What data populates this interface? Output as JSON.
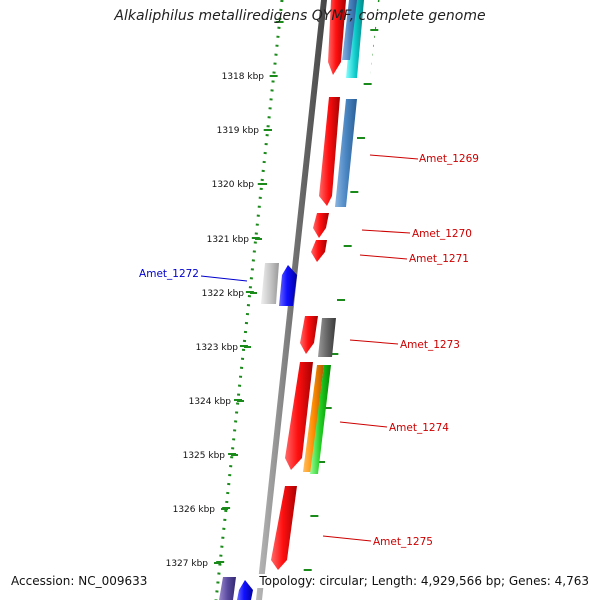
{
  "title": "Alkaliphilus metalliredigens QYMF, complete genome",
  "footer": {
    "accession": "Accession: NC_009633",
    "summary": "Topology: circular; Length: 4,929,566 bp; Genes: 4,763"
  },
  "ruler": {
    "unit": "kbp",
    "ticks": [
      "1318 kbp",
      "1319 kbp",
      "1320 kbp",
      "1321 kbp",
      "1322 kbp",
      "1323 kbp",
      "1324 kbp",
      "1325 kbp",
      "1326 kbp",
      "1327 kbp"
    ]
  },
  "colors": {
    "forward_label": "#cc0000",
    "reverse_label": "#0000cc",
    "tick_green": "#1a8a1a",
    "backbone": "#777777"
  },
  "genes": [
    {
      "label": "Amet_1269",
      "strand": "forward",
      "color": "#cc0000"
    },
    {
      "label": "Amet_1270",
      "strand": "forward",
      "color": "#cc0000"
    },
    {
      "label": "Amet_1271",
      "strand": "forward",
      "color": "#cc0000"
    },
    {
      "label": "Amet_1272",
      "strand": "reverse",
      "color": "#0000cc"
    },
    {
      "label": "Amet_1273",
      "strand": "forward",
      "color": "#cc0000"
    },
    {
      "label": "Amet_1274",
      "strand": "forward",
      "color": "#cc0000"
    },
    {
      "label": "Amet_1275",
      "strand": "forward",
      "color": "#cc0000"
    }
  ]
}
